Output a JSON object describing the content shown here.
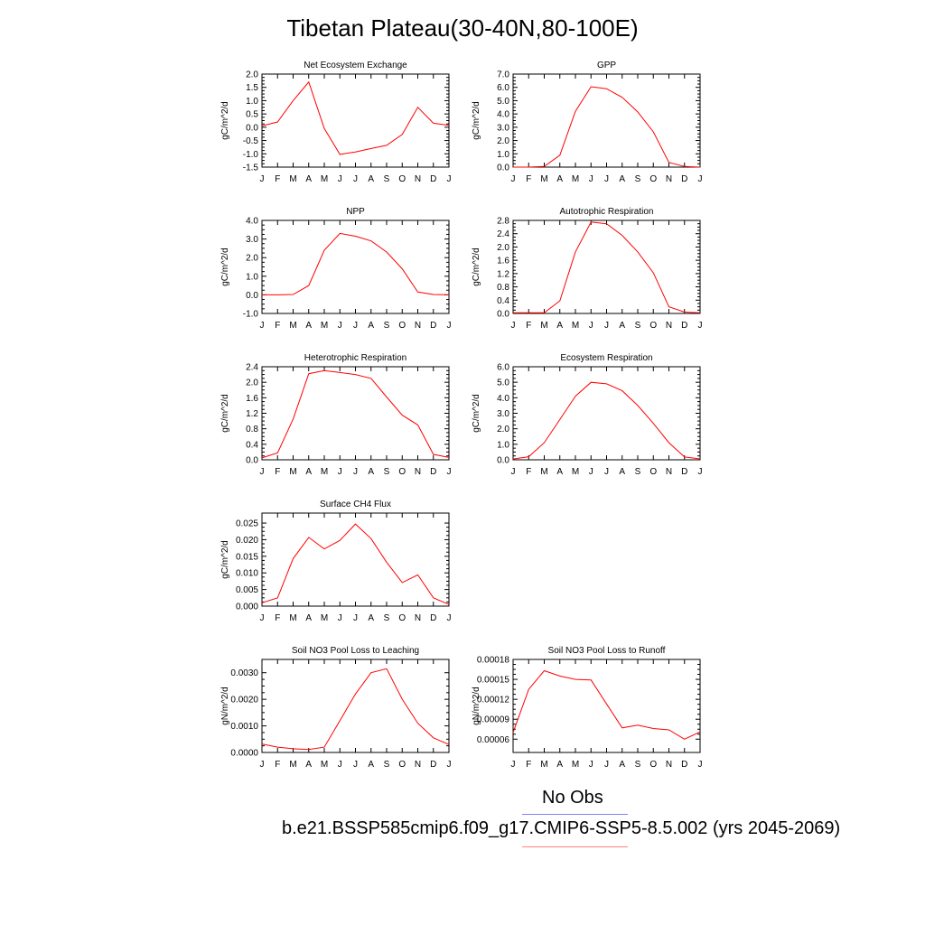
{
  "title": "Tibetan Plateau(30-40N,80-100E)",
  "month_labels": [
    "J",
    "F",
    "M",
    "A",
    "M",
    "J",
    "J",
    "A",
    "S",
    "O",
    "N",
    "D",
    "J"
  ],
  "legend": {
    "obs_label": "No Obs",
    "obs_color": "#8080ff",
    "case_label": "b.e21.BSSP585cmip6.f09_g17.CMIP6-SSP5-8.5.002 (yrs 2045-2069)",
    "case_color": "#ff8080"
  },
  "line_color": "#ff0000",
  "chart_data": [
    {
      "type": "line",
      "title": "Net Ecosystem Exchange",
      "ylabel": "gC/m^2/d",
      "ylim": [
        -1.5,
        2.0
      ],
      "yticks": [
        "2.0",
        "1.5",
        "1.0",
        "0.5",
        "0.0",
        "-0.5",
        "-1.0",
        "-1.5"
      ],
      "values": [
        0.05,
        0.2,
        1.0,
        1.7,
        -0.05,
        -1.02,
        -0.93,
        -0.8,
        -0.68,
        -0.27,
        0.75,
        0.15,
        0.07
      ]
    },
    {
      "type": "line",
      "title": "GPP",
      "ylabel": "gC/m^2/d",
      "ylim": [
        0,
        7.0
      ],
      "yticks": [
        "7.0",
        "6.0",
        "5.0",
        "4.0",
        "3.0",
        "2.0",
        "1.0",
        "0.0"
      ],
      "values": [
        0.0,
        0.0,
        0.05,
        0.9,
        4.2,
        6.05,
        5.9,
        5.25,
        4.15,
        2.65,
        0.35,
        0.05,
        0.0
      ]
    },
    {
      "type": "line",
      "title": "NPP",
      "ylabel": "gC/m^2/d",
      "ylim": [
        -1.0,
        4.0
      ],
      "yticks": [
        "4.0",
        "3.0",
        "2.0",
        "1.0",
        "0.0",
        "-1.0"
      ],
      "values": [
        0.0,
        0.0,
        0.02,
        0.5,
        2.4,
        3.3,
        3.15,
        2.9,
        2.3,
        1.4,
        0.15,
        0.02,
        0.0
      ]
    },
    {
      "type": "line",
      "title": "Autotrophic Respiration",
      "ylabel": "gC/m^2/d",
      "ylim": [
        0,
        2.8
      ],
      "yticks": [
        "2.8",
        "2.4",
        "2.0",
        "1.6",
        "1.2",
        "0.8",
        "0.4",
        "0.0"
      ],
      "values": [
        0.02,
        0.02,
        0.02,
        0.38,
        1.85,
        2.75,
        2.7,
        2.35,
        1.85,
        1.22,
        0.2,
        0.04,
        0.02
      ]
    },
    {
      "type": "line",
      "title": "Heterotrophic Respiration",
      "ylabel": "gC/m^2/d",
      "ylim": [
        0,
        2.4
      ],
      "yticks": [
        "2.4",
        "2.0",
        "1.6",
        "1.2",
        "0.8",
        "0.4",
        "0.0"
      ],
      "values": [
        0.05,
        0.18,
        1.05,
        2.22,
        2.3,
        2.25,
        2.2,
        2.1,
        1.62,
        1.15,
        0.9,
        0.14,
        0.06
      ]
    },
    {
      "type": "line",
      "title": "Ecosystem Respiration",
      "ylabel": "gC/m^2/d",
      "ylim": [
        0,
        6.0
      ],
      "yticks": [
        "6.0",
        "5.0",
        "4.0",
        "3.0",
        "2.0",
        "1.0",
        "0.0"
      ],
      "values": [
        0.05,
        0.2,
        1.1,
        2.6,
        4.1,
        5.0,
        4.9,
        4.45,
        3.5,
        2.35,
        1.1,
        0.18,
        0.06
      ]
    },
    {
      "type": "line",
      "title": "Surface CH4 Flux",
      "ylabel": "gC/m^2/d",
      "ylim": [
        0,
        0.028
      ],
      "yticks": [
        "0.025",
        "0.020",
        "0.015",
        "0.010",
        "0.005",
        "0.000"
      ],
      "ytick_values": [
        0.025,
        0.02,
        0.015,
        0.01,
        0.005,
        0.0
      ],
      "values": [
        0.001,
        0.0025,
        0.0143,
        0.0207,
        0.0172,
        0.0198,
        0.0247,
        0.0203,
        0.0132,
        0.0071,
        0.0094,
        0.0025,
        0.0005
      ]
    },
    {
      "type": "line",
      "title": "Soil NO3 Pool Loss to Leaching",
      "ylabel": "gN/m^2/d",
      "ylim": [
        0,
        0.0035
      ],
      "yticks": [
        "0.0030",
        "0.0020",
        "0.0010",
        "0.0000"
      ],
      "ytick_values": [
        0.003,
        0.002,
        0.001,
        0.0
      ],
      "values": [
        0.00032,
        0.0002,
        0.00014,
        0.00011,
        0.0002,
        0.0012,
        0.0022,
        0.003,
        0.00315,
        0.002,
        0.0011,
        0.00055,
        0.0003
      ]
    },
    {
      "type": "line",
      "title": "Soil NO3 Pool Loss to Runoff",
      "ylabel": "gN/m^2/d",
      "ylim": [
        4e-05,
        0.00018
      ],
      "yticks": [
        "0.00018",
        "0.00015",
        "0.00012",
        "0.00009",
        "0.00006"
      ],
      "ytick_values": [
        0.00018,
        0.00015,
        0.00012,
        9e-05,
        6e-05
      ],
      "values": [
        7e-05,
        0.000135,
        0.000163,
        0.000155,
        0.00015,
        0.000149,
        0.000113,
        7.7e-05,
        8.1e-05,
        7.6e-05,
        7.4e-05,
        6e-05,
        7.1e-05
      ]
    }
  ]
}
